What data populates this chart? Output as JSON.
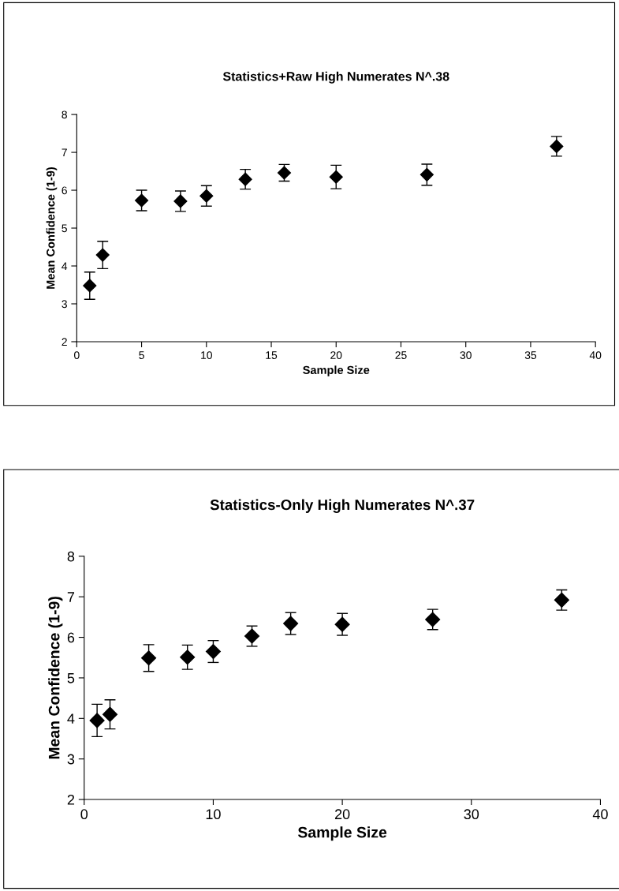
{
  "chart_data": [
    {
      "type": "scatter",
      "title": "Statistics+Raw High Numerates N^.38",
      "xlabel": "Sample Size",
      "ylabel": "Mean Confidence (1-9)",
      "x": [
        1,
        2,
        5,
        8,
        10,
        13,
        16,
        20,
        27,
        37
      ],
      "series": [
        {
          "color": "#000000",
          "values": [
            3.48,
            4.29,
            5.73,
            5.71,
            5.85,
            6.29,
            6.46,
            6.35,
            6.41,
            7.16
          ],
          "errors": [
            0.36,
            0.36,
            0.27,
            0.27,
            0.27,
            0.26,
            0.22,
            0.31,
            0.28,
            0.26
          ]
        }
      ],
      "xlim": [
        0,
        40
      ],
      "xticks": [
        0,
        5,
        10,
        15,
        20,
        25,
        30,
        35,
        40
      ],
      "ylim": [
        2,
        8
      ],
      "yticks": [
        2,
        3,
        4,
        5,
        6,
        7,
        8
      ],
      "marker": "diamond",
      "grid": false,
      "legend": false
    },
    {
      "type": "scatter",
      "title": "Statistics-Only High Numerates N^.37",
      "xlabel": "Sample Size",
      "ylabel": "Mean Confidence (1-9)",
      "x": [
        1,
        2,
        5,
        8,
        10,
        13,
        16,
        20,
        27,
        37
      ],
      "series": [
        {
          "color": "#000000",
          "values": [
            3.95,
            4.1,
            5.49,
            5.51,
            5.65,
            6.03,
            6.34,
            6.32,
            6.44,
            6.92
          ],
          "errors": [
            0.4,
            0.36,
            0.33,
            0.3,
            0.27,
            0.25,
            0.27,
            0.27,
            0.25,
            0.25
          ]
        }
      ],
      "xlim": [
        0,
        40
      ],
      "xticks": [
        0,
        10,
        20,
        30,
        40
      ],
      "ylim": [
        2,
        8
      ],
      "yticks": [
        2,
        3,
        4,
        5,
        6,
        7,
        8
      ],
      "marker": "diamond",
      "grid": false,
      "legend": false
    }
  ]
}
